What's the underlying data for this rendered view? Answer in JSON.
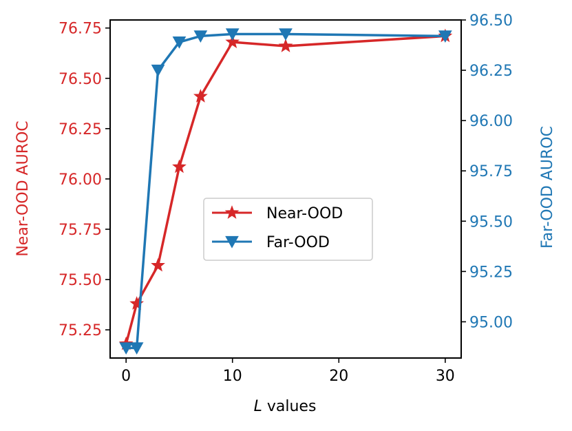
{
  "chart_data": {
    "type": "line",
    "title": "",
    "xlabel_var": "L",
    "xlabel_rest": " values",
    "xlim": [
      -1.5,
      31.5
    ],
    "xticks": [
      0,
      10,
      20,
      30
    ],
    "x": [
      0,
      1,
      3,
      5,
      7,
      10,
      15,
      30
    ],
    "left_axis": {
      "label": "Near-OOD AUROC",
      "ylim": [
        75.11,
        76.79
      ],
      "ticks": [
        "75.25",
        "75.50",
        "75.75",
        "76.00",
        "76.25",
        "76.50",
        "76.75"
      ],
      "color": "#d62728"
    },
    "right_axis": {
      "label": "Far-OOD AUROC",
      "ylim": [
        94.82,
        96.5
      ],
      "ticks": [
        "95.00",
        "95.25",
        "95.50",
        "95.75",
        "96.00",
        "96.25",
        "96.50"
      ],
      "color": "#1f77b4"
    },
    "series": [
      {
        "name": "Near-OOD",
        "axis": "left",
        "marker": "star",
        "color": "#d62728",
        "values": [
          75.18,
          75.38,
          75.57,
          76.06,
          76.41,
          76.68,
          76.66,
          76.71
        ]
      },
      {
        "name": "Far-OOD",
        "axis": "right",
        "marker": "triangle-down",
        "color": "#1f77b4",
        "values": [
          94.87,
          94.87,
          96.25,
          96.39,
          96.42,
          96.43,
          96.43,
          96.42
        ]
      }
    ],
    "legend_position": "center"
  }
}
